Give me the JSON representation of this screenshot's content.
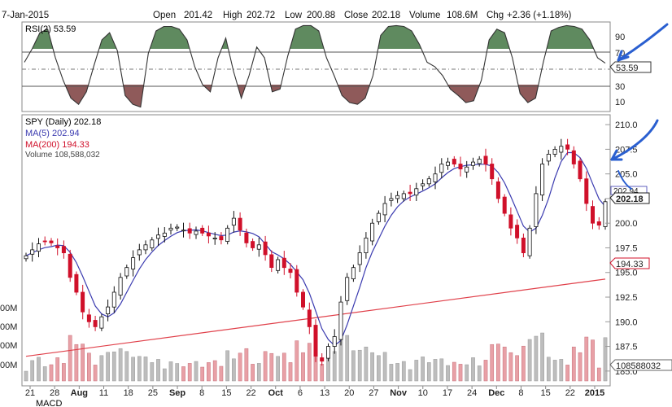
{
  "header": {
    "date": "7-Jan-2015",
    "open_label": "Open",
    "open": "201.42",
    "high_label": "High",
    "high": "202.72",
    "low_label": "Low",
    "low": "200.88",
    "close_label": "Close",
    "close": "202.18",
    "volume_label": "Volume",
    "volume": "108.6M",
    "chg_label": "Chg",
    "chg": "+2.36 (+1.18%)"
  },
  "rsi_panel": {
    "label": "RSI(2) 53.59",
    "current_value": "53.59",
    "ticks": [
      "90",
      "70",
      "30",
      "10"
    ]
  },
  "price_panel": {
    "legend": {
      "spy": "SPY (Daily) 202.18",
      "ma5": "MA(5) 202.94",
      "ma200": "MA(200) 194.33",
      "volume": "Volume 108,588,032"
    },
    "y_ticks": [
      "210.0",
      "207.5",
      "205.0",
      "202.5",
      "200.0",
      "197.5",
      "195.0",
      "192.5",
      "190.0",
      "187.5",
      "185.0"
    ],
    "current_price_tag": "202.18",
    "ma200_tag": "194.33",
    "ma5_tag": "202.94",
    "volume_tag": "108588032",
    "volume_ticks": [
      "00M",
      "00M",
      "00M",
      "00M"
    ]
  },
  "x_axis": {
    "labels": [
      "21",
      "28",
      "Aug",
      "11",
      "18",
      "25",
      "Sep",
      "8",
      "15",
      "22",
      "Oct",
      "6",
      "13",
      "20",
      "27",
      "Nov",
      "10",
      "17",
      "24",
      "Dec",
      "8",
      "15",
      "22",
      "2015"
    ],
    "bold_labels": [
      "Aug",
      "Sep",
      "Oct",
      "Nov",
      "Dec",
      "2015"
    ]
  },
  "bottom_label": "MACD",
  "colors": {
    "rsi_fill_high": "#5f8a5f",
    "rsi_fill_low": "#8f5a5a",
    "up_candle": "#ffffff",
    "down_candle": "#d0102a",
    "ma5": "#3b3bb0",
    "ma200": "#e0404a",
    "volume_up": "#bdbdbd",
    "volume_down": "#e8a0a6",
    "annotation": "#2a5fd0"
  },
  "chart_data": [
    {
      "type": "line",
      "title": "RSI(2) 53.59",
      "ylim": [
        0,
        100
      ],
      "thresholds": [
        70,
        30
      ],
      "series": [
        {
          "name": "RSI(2)",
          "values": [
            55,
            70,
            88,
            92,
            60,
            35,
            15,
            8,
            22,
            52,
            80,
            88,
            68,
            18,
            8,
            5,
            65,
            90,
            95,
            95,
            92,
            80,
            50,
            30,
            22,
            60,
            82,
            45,
            15,
            40,
            72,
            60,
            22,
            25,
            62,
            92,
            96,
            96,
            90,
            60,
            40,
            18,
            10,
            8,
            15,
            40,
            85,
            95,
            96,
            95,
            90,
            75,
            55,
            50,
            40,
            25,
            18,
            10,
            12,
            35,
            80,
            92,
            88,
            60,
            20,
            10,
            15,
            55,
            90,
            94,
            96,
            95,
            92,
            80,
            60,
            54
          ]
        }
      ]
    },
    {
      "type": "line",
      "title": "SPY (Daily) 202.18",
      "ylim": [
        183.5,
        211
      ],
      "series": [
        {
          "name": "SPY (Daily)",
          "close": [
            196.7,
            197.3,
            197.9,
            198.2,
            198.0,
            197.5,
            197.0,
            194.5,
            193.0,
            191.0,
            190.0,
            189.5,
            190.5,
            191.5,
            193.0,
            194.5,
            195.5,
            196.5,
            197.3,
            197.8,
            198.3,
            198.8,
            199.0,
            199.5,
            199.6,
            199.3,
            199.0,
            199.2,
            199.0,
            198.7,
            198.5,
            198.3,
            199.5,
            200.5,
            199.3,
            198.0,
            197.5,
            197.8,
            196.8,
            195.5,
            196.3,
            195.5,
            195.0,
            193.0,
            191.5,
            189.5,
            186.5,
            186.0,
            187.5,
            188.5,
            192.0,
            194.5,
            195.5,
            197.0,
            198.5,
            200.0,
            201.0,
            202.0,
            202.5,
            202.8,
            203.0,
            203.0,
            203.5,
            204.0,
            204.5,
            205.0,
            206.0,
            206.2,
            206.0,
            205.5,
            205.7,
            206.2,
            206.5,
            206.0,
            204.5,
            202.5,
            201.0,
            199.5,
            198.5,
            197.0,
            199.5,
            203.0,
            206.0,
            207.0,
            207.5,
            207.8,
            207.5,
            206.0,
            204.5,
            202.0,
            200.0,
            199.8,
            202.18
          ]
        },
        {
          "name": "MA(5)",
          "last": 202.94
        },
        {
          "name": "MA(200)",
          "start": 186.5,
          "end": 194.33
        }
      ]
    },
    {
      "type": "bar",
      "title": "Volume 108,588,032",
      "series": [
        {
          "name": "Volume",
          "last": 108588032
        }
      ]
    }
  ]
}
